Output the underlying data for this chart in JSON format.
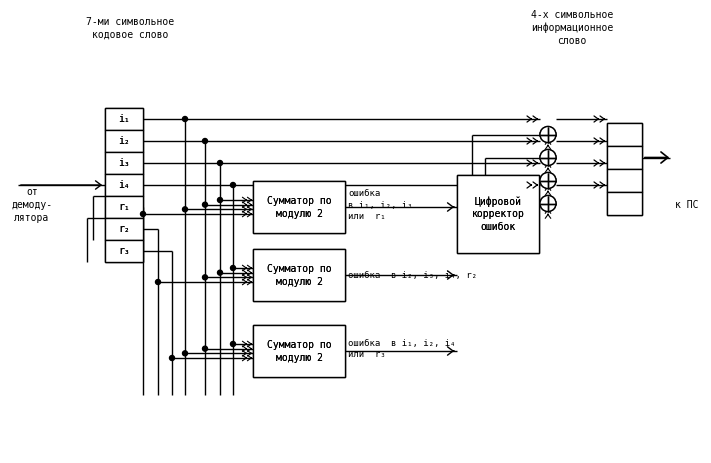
{
  "bg": "#ffffff",
  "lc": "#000000",
  "fs": 7.0,
  "title_left": "7-ми символьное\nкодовое слово",
  "title_right": "4-х символьное\nинформационное\nслово",
  "lbl_demod": "от\nдемоду-\nлятора",
  "lbl_kps": "к ПС",
  "reg_labels": [
    "i₁",
    "i₂",
    "i₃",
    "i₄",
    "r₁",
    "r₂",
    "r₃"
  ],
  "summ_text": "Сумматор по\nмодулю 2",
  "corr_text": "Цифровой\nкорректор\nошибок",
  "err1": "ошибка\nв i₁, i₂, i₃\nили  r₁",
  "err2": "ошибка  в i₂, i₃, i₄, r₂",
  "err3": "ошибка  в i₁, i₂, i₄\nили  r₃"
}
